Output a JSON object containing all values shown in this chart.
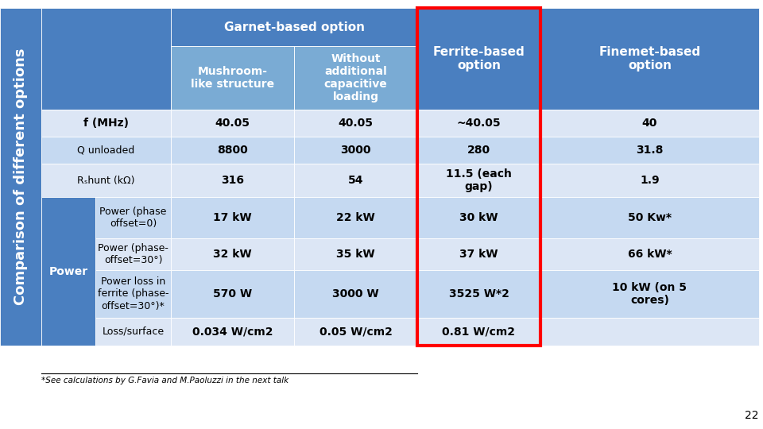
{
  "title_vertical": "Comparison of different options",
  "footnote": "*See calculations by G.Favia and M.Paoluzzi in the next talk",
  "page_number": "22",
  "color_header_dark": "#4a7fc0",
  "color_header_mid": "#7aabd4",
  "color_row_alt1": "#c5d9f1",
  "color_row_alt2": "#dce6f5",
  "color_red_border": "#ff0000",
  "fig_width": 9.6,
  "fig_height": 5.4,
  "fig_dpi": 100
}
